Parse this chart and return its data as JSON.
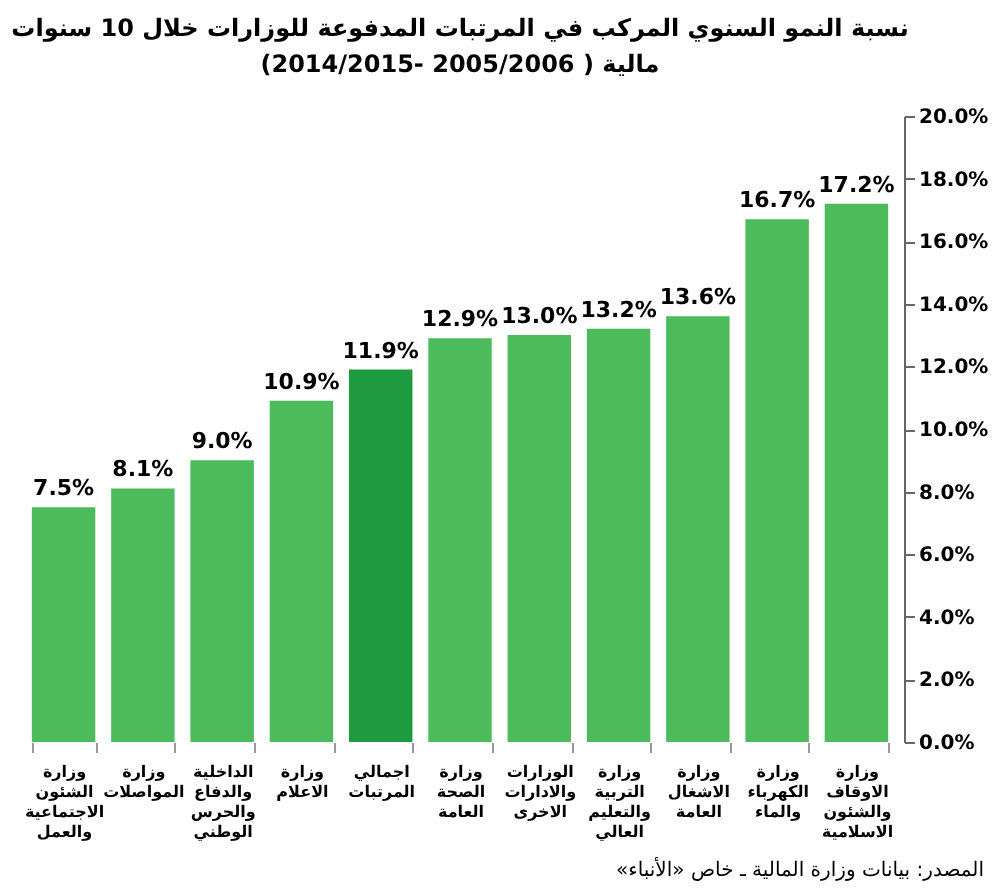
{
  "chart_data": {
    "type": "bar",
    "title": "نسبة النمو السنوي المركب في المرتبات المدفوعة للوزارات خلال 10 سنوات\nمالية ( 2005/2006 -2014/2015)",
    "categories": [
      "وزارة الشئون\nالاجتماعية\nوالعمل",
      "وزارة\nالمواصلات",
      "الداخلية\nوالدفاع\nوالحرس\nالوطني",
      "وزارة الاعلام",
      "اجمالي\nالمرتبات",
      "وزارة الصحة\nالعامة",
      "الوزارات\nوالادارات\nالاخرى",
      "وزارة التربية\nوالتعليم العالي",
      "وزارة الاشغال\nالعامة",
      "وزارة\nالكهرباء\nوالماء",
      "وزارة الاوقاف\nوالشئون\nالاسلامية"
    ],
    "values": [
      7.5,
      8.1,
      9.0,
      10.9,
      11.9,
      12.9,
      13.0,
      13.2,
      13.6,
      16.7,
      17.2
    ],
    "value_labels": [
      "7.5%",
      "8.1%",
      "9.0%",
      "10.9%",
      "11.9%",
      "12.9%",
      "13.0%",
      "13.2%",
      "13.6%",
      "16.7%",
      "17.2%"
    ],
    "colors": [
      "#4cbb5c",
      "#4cbb5c",
      "#4cbb5c",
      "#4cbb5c",
      "#1e9a3f",
      "#4cbb5c",
      "#4cbb5c",
      "#4cbb5c",
      "#4cbb5c",
      "#4cbb5c",
      "#4cbb5c"
    ],
    "ylim": [
      0,
      20
    ],
    "yticks": [
      {
        "value": 0,
        "label": "0.0%"
      },
      {
        "value": 2,
        "label": "2.0%"
      },
      {
        "value": 4,
        "label": "4.0%"
      },
      {
        "value": 6,
        "label": "6.0%"
      },
      {
        "value": 8,
        "label": "8.0%"
      },
      {
        "value": 10,
        "label": "10.0%"
      },
      {
        "value": 12,
        "label": "12.0%"
      },
      {
        "value": 14,
        "label": "14.0%"
      },
      {
        "value": 16,
        "label": "16.0%"
      },
      {
        "value": 18,
        "label": "18.0%"
      },
      {
        "value": 20,
        "label": "20.0%"
      }
    ],
    "grid": false,
    "annotations": [
      "المصدر: بيانات وزارة المالية ـ خاص «الأنباء»"
    ]
  }
}
